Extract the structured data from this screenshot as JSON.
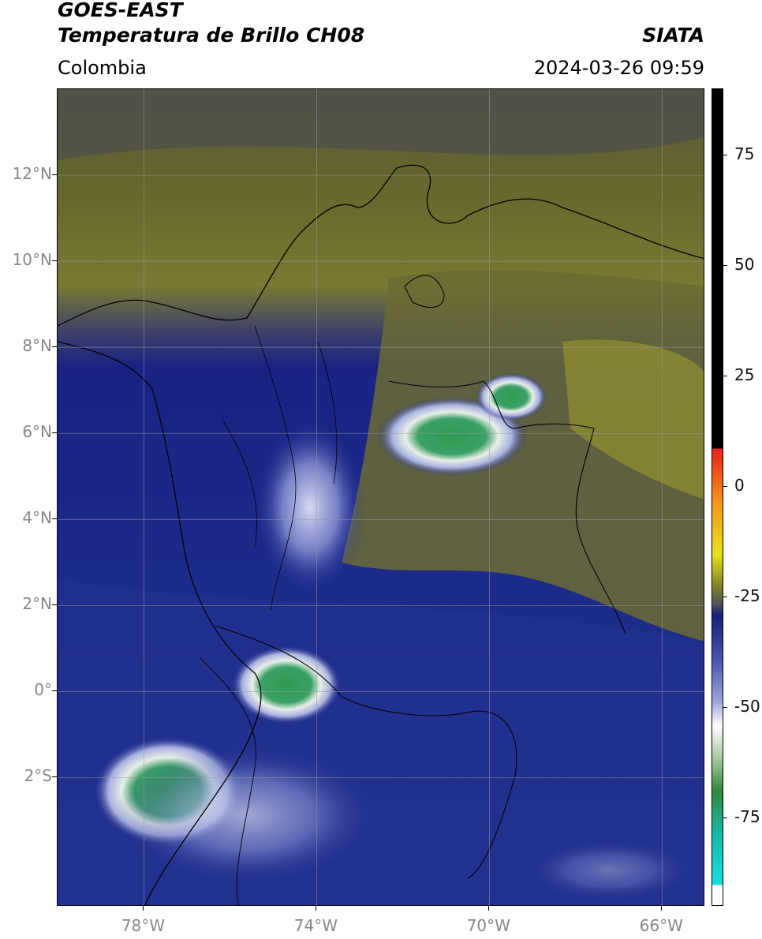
{
  "header": {
    "title_line1": "GOES-EAST",
    "title_line2": "Temperatura de Brillo CH08",
    "brand": "SIATA",
    "region": "Colombia",
    "datetime": "2024-03-26 09:59"
  },
  "map": {
    "lat_labels": [
      "12°N",
      "10°N",
      "8°N",
      "6°N",
      "4°N",
      "2°N",
      "0°",
      "2°S"
    ],
    "lon_labels": [
      "78°W",
      "74°W",
      "70°W",
      "66°W"
    ],
    "extent": {
      "lon_min": -80,
      "lon_max": -65,
      "lat_min": -5,
      "lat_max": 14
    }
  },
  "colorbar": {
    "labels": [
      "75",
      "50",
      "25",
      "0",
      "-25",
      "-50",
      "-75"
    ],
    "range": [
      -95,
      90
    ],
    "colors": {
      "warm": "#000000",
      "red": "#e8221a",
      "orange": "#f59a18",
      "yellow": "#e8e21c",
      "olive": "#7f7f2a",
      "gray": "#555555",
      "navy": "#12207a",
      "lightblue": "#9aa3d8",
      "white": "#ffffff",
      "green": "#2f8a3a",
      "teal": "#18b8a4",
      "cyan": "#16e0e0"
    }
  }
}
